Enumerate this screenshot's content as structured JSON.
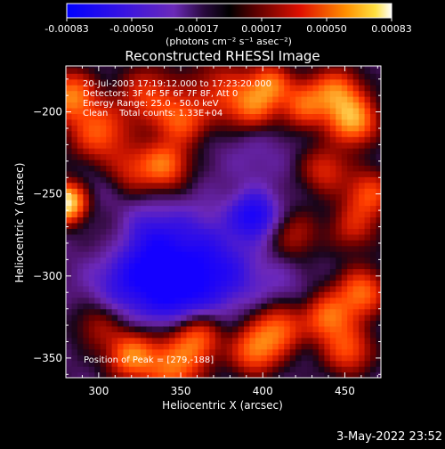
{
  "colorbar": {
    "ticks": [
      "-0.00083",
      "-0.00050",
      "-0.00017",
      "0.00017",
      "0.00050",
      "0.00083"
    ],
    "unit_label": "(photons cm⁻² s⁻¹ asec⁻²)",
    "range": [
      -0.00083,
      0.00083
    ]
  },
  "chart_data": {
    "type": "heatmap",
    "title": "Reconstructed RHESSI Image",
    "xlabel": "Heliocentric X (arcsec)",
    "ylabel": "Heliocentric Y (arcsec)",
    "xlim": [
      280,
      472
    ],
    "ylim": [
      -362,
      -172
    ],
    "x_ticks": [
      300,
      350,
      400,
      450
    ],
    "y_ticks": [
      -200,
      -250,
      -300,
      -350
    ],
    "x_tick_labels": [
      "300",
      "350",
      "400",
      "450"
    ],
    "y_tick_labels": [
      "−200",
      "−250",
      "−300",
      "−350"
    ],
    "grid": false,
    "annotations": [
      "20-Jul-2003 17:19:12.000 to 17:23:20.000",
      "Detectors: 3F 4F 5F 6F 7F 8F, Att 0",
      "Energy Range: 25.0 - 50.0 keV",
      "Clean    Total counts: 1.33E+04"
    ],
    "peak_label": "Position of Peak = [279,-188]",
    "peak_position": [
      279,
      -188
    ],
    "colors": {
      "low": "#1a00ff",
      "mid_low": "#7a2bc0",
      "mid": "#8a0c10",
      "mid_high": "#ff3300",
      "high": "#ffffff"
    }
  },
  "footer": {
    "timestamp": "3-May-2022 23:52"
  }
}
